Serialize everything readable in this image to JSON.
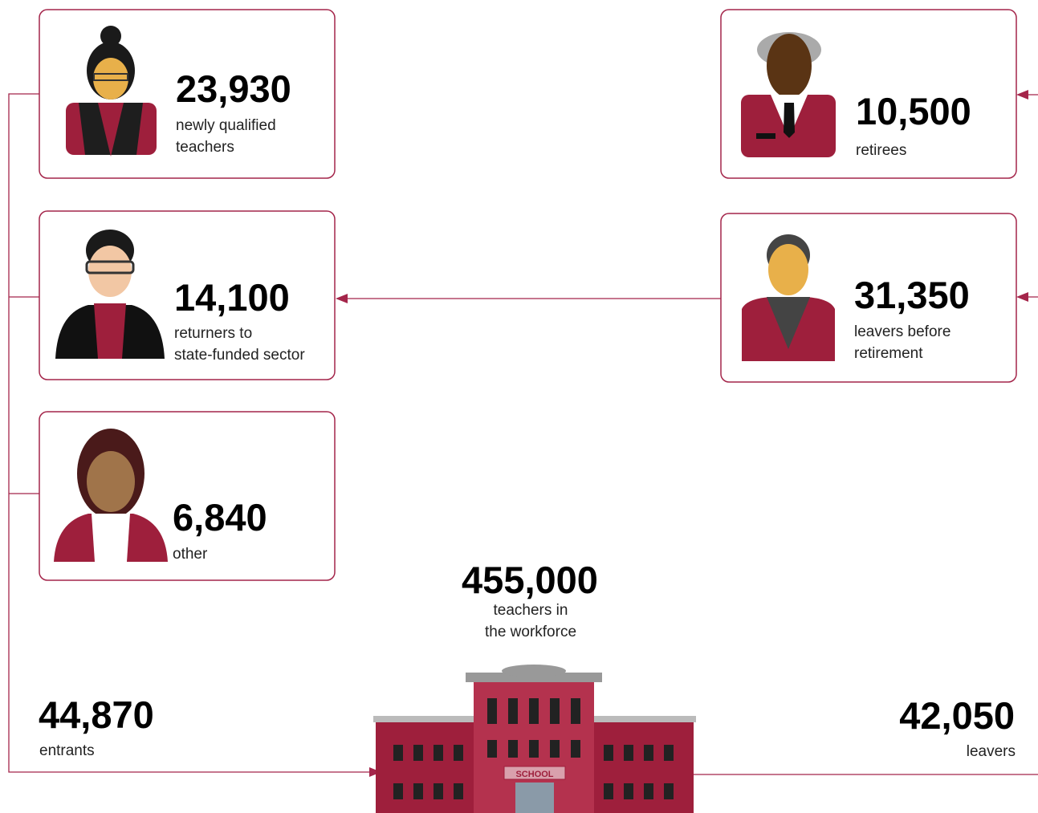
{
  "entrant_cards": [
    {
      "number": "23,930",
      "label": [
        "newly qualified",
        "teachers"
      ]
    },
    {
      "number": "14,100",
      "label": [
        "returners to",
        "state-funded sector"
      ]
    },
    {
      "number": "6,840",
      "label": [
        "other"
      ]
    }
  ],
  "leaver_cards": [
    {
      "number": "10,500",
      "label": [
        "retirees"
      ]
    },
    {
      "number": "31,350",
      "label": [
        "leavers before",
        "retirement"
      ]
    }
  ],
  "workforce": {
    "number": "455,000",
    "label": [
      "teachers in",
      "the workforce"
    ]
  },
  "entrants": {
    "number": "44,870",
    "label": "entrants"
  },
  "leavers": {
    "number": "42,050",
    "label": "leavers"
  },
  "school_sign": "SCHOOL"
}
